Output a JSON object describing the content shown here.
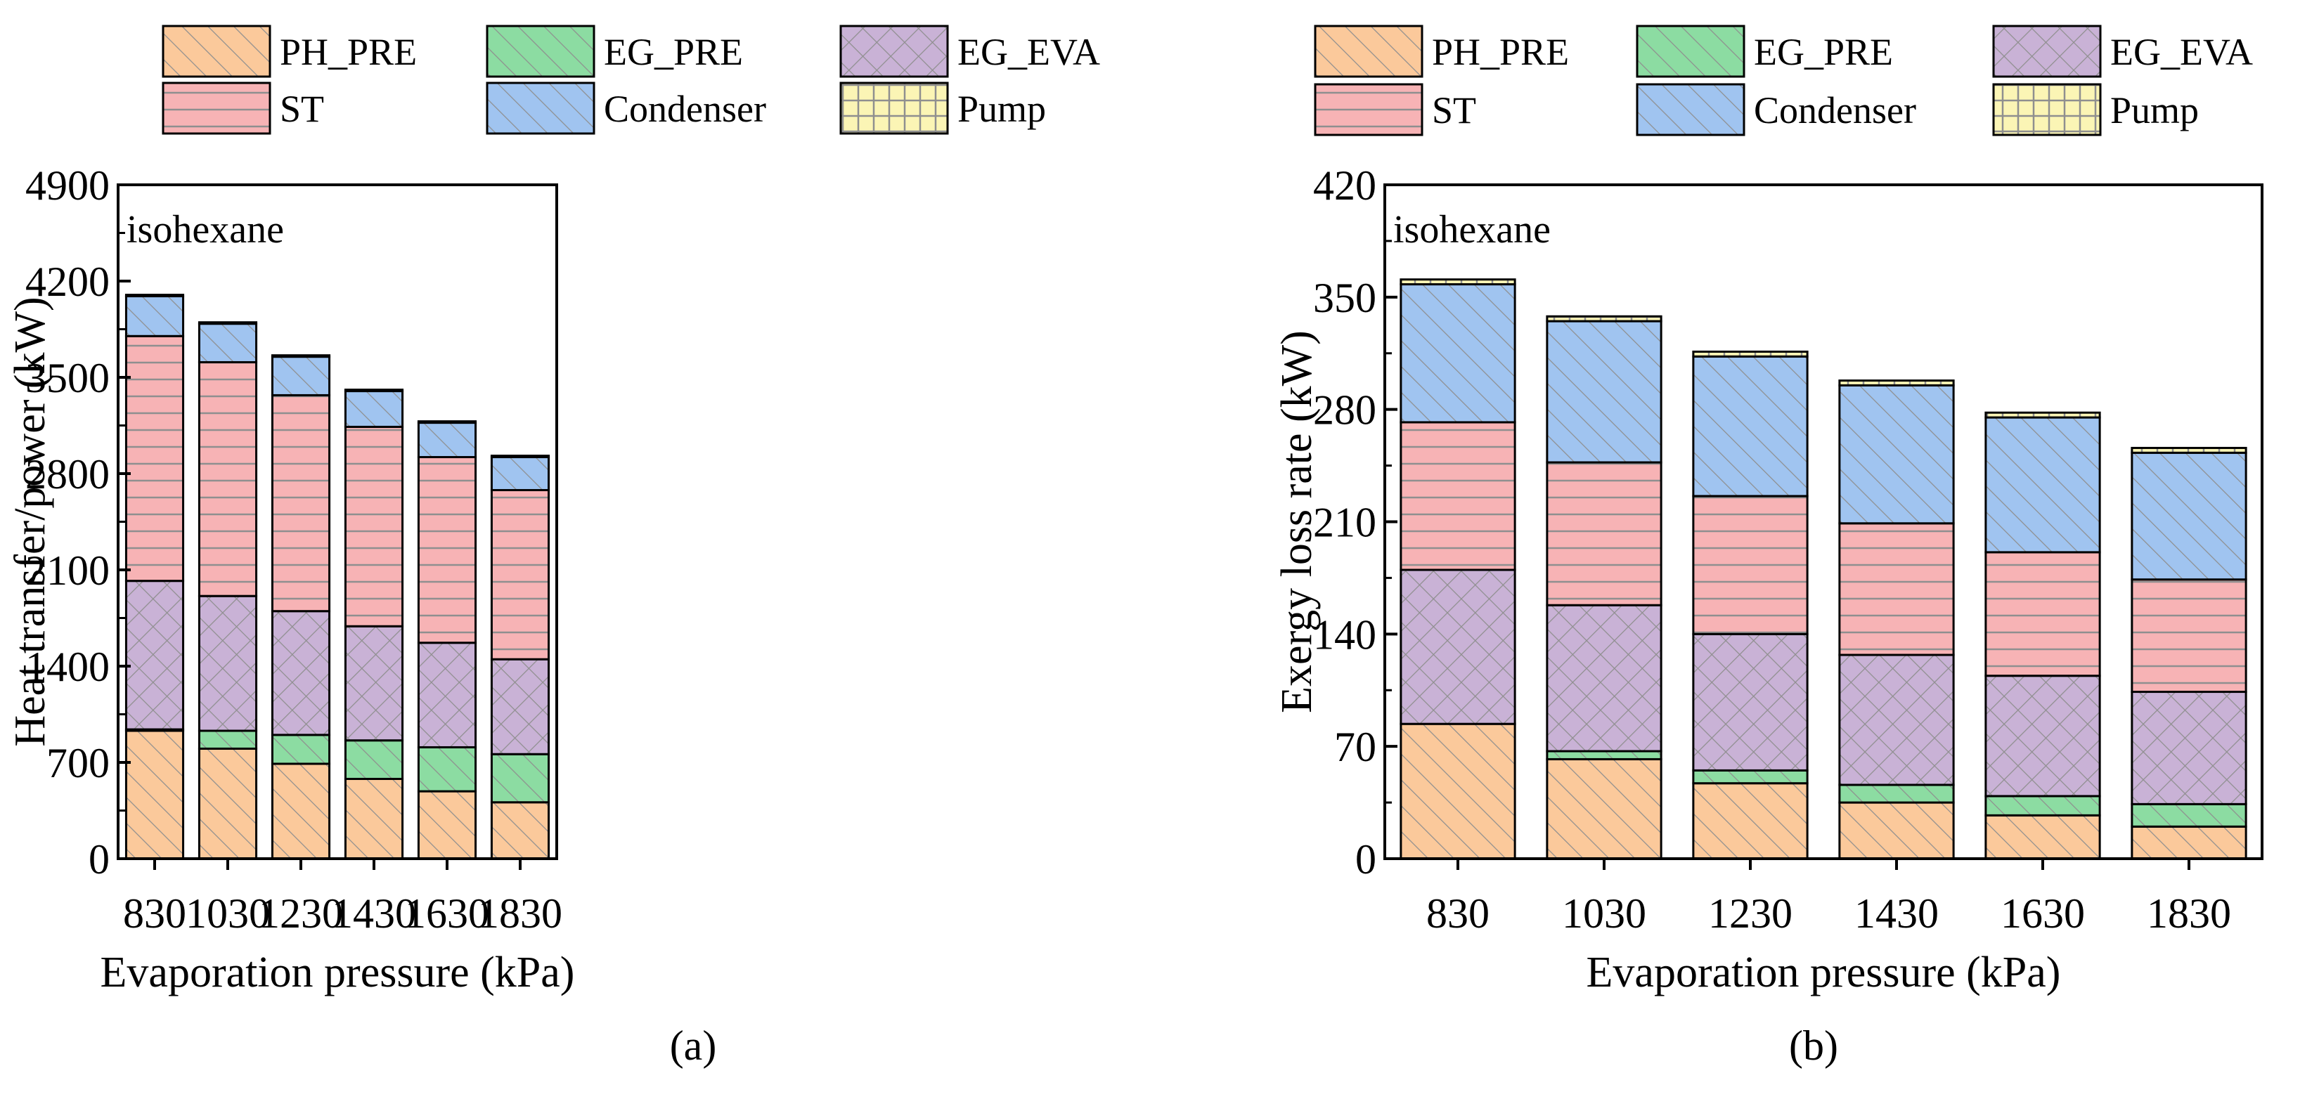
{
  "colors": {
    "PH_PRE": "#fbc99b",
    "EG_PRE": "#8cdca2",
    "EG_EVA": "#c9b2d6",
    "ST": "#f7b3b5",
    "Condenser": "#a0c4f0",
    "Pump": "#fbf5b5"
  },
  "chart_data": [
    {
      "type": "bar",
      "stacked": true,
      "caption": "(a)",
      "annotation": "isohexane",
      "xlabel": "Evaporation pressure (kPa)",
      "ylabel": "Heat transfer/power (kW)",
      "ylim": [
        0,
        4900
      ],
      "yticks": [
        "0",
        "700",
        "1400",
        "2100",
        "2800",
        "3500",
        "4200",
        "4900"
      ],
      "categories": [
        "830",
        "1030",
        "1230",
        "1430",
        "1630",
        "1830"
      ],
      "legend": [
        "PH_PRE",
        "EG_PRE",
        "EG_EVA",
        "ST",
        "Condenser",
        "Pump"
      ],
      "series": [
        {
          "name": "PH_PRE",
          "values": [
            930,
            800,
            690,
            580,
            490,
            410
          ]
        },
        {
          "name": "EG_PRE",
          "values": [
            10,
            130,
            210,
            280,
            320,
            350
          ]
        },
        {
          "name": "EG_EVA",
          "values": [
            1080,
            980,
            900,
            830,
            760,
            690
          ]
        },
        {
          "name": "ST",
          "values": [
            1780,
            1700,
            1570,
            1450,
            1350,
            1230
          ]
        },
        {
          "name": "Condenser",
          "values": [
            290,
            280,
            280,
            260,
            250,
            240
          ]
        },
        {
          "name": "Pump",
          "values": [
            10,
            10,
            10,
            10,
            10,
            10
          ]
        }
      ]
    },
    {
      "type": "bar",
      "stacked": true,
      "caption": "(b)",
      "annotation": "isohexane",
      "xlabel": "Evaporation pressure (kPa)",
      "ylabel": "Exergy loss rate (kW)",
      "ylim": [
        0,
        420
      ],
      "yticks": [
        "0",
        "70",
        "140",
        "210",
        "280",
        "350",
        "420"
      ],
      "categories": [
        "830",
        "1030",
        "1230",
        "1430",
        "1630",
        "1830"
      ],
      "legend": [
        "PH_PRE",
        "EG_PRE",
        "EG_EVA",
        "ST",
        "Condenser",
        "Pump"
      ],
      "series": [
        {
          "name": "PH_PRE",
          "values": [
            84,
            62,
            47,
            35,
            27,
            20
          ]
        },
        {
          "name": "EG_PRE",
          "values": [
            0,
            5,
            8,
            11,
            12,
            14
          ]
        },
        {
          "name": "EG_EVA",
          "values": [
            96,
            91,
            85,
            81,
            75,
            70
          ]
        },
        {
          "name": "ST",
          "values": [
            92,
            89,
            86,
            82,
            77,
            70
          ]
        },
        {
          "name": "Condenser",
          "values": [
            86,
            88,
            87,
            86,
            84,
            79
          ]
        },
        {
          "name": "Pump",
          "values": [
            3,
            3,
            3,
            3,
            3,
            3
          ]
        }
      ]
    }
  ]
}
